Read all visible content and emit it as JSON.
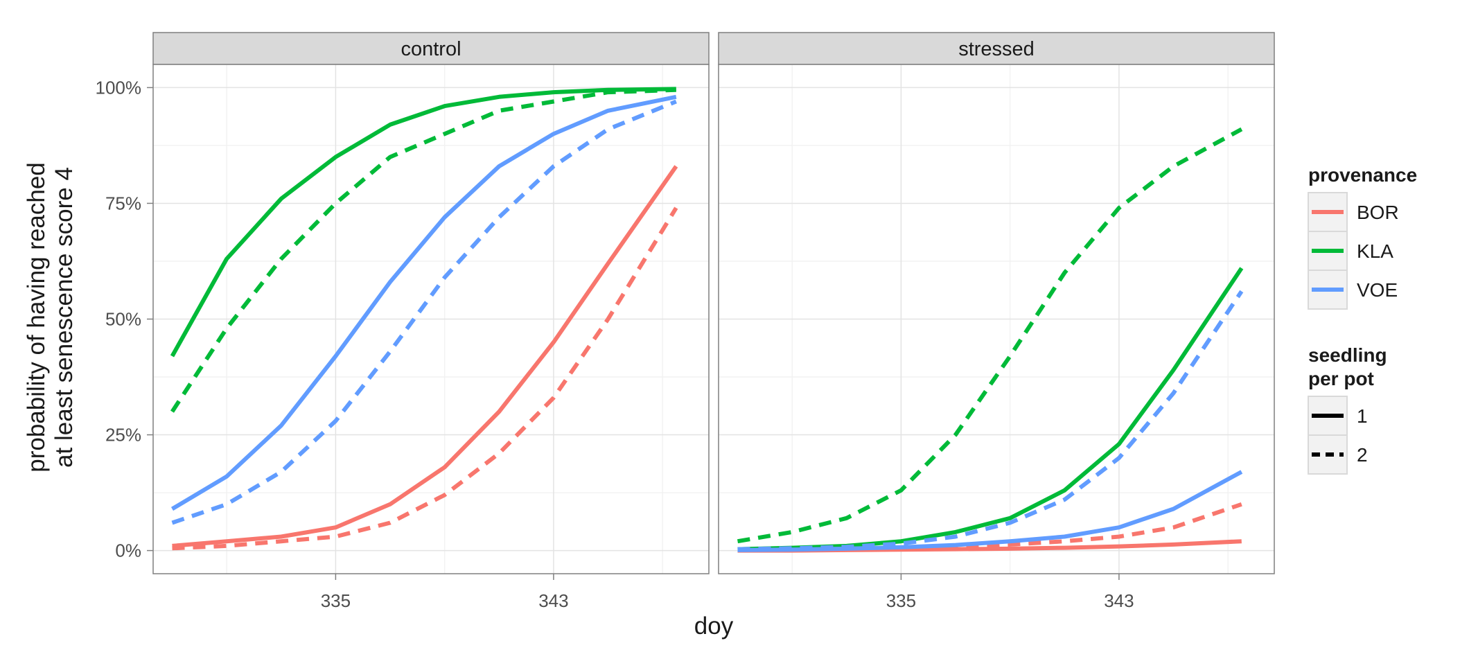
{
  "chart_data": {
    "type": "line",
    "x_label": "doy",
    "y_label_lines": [
      "probability of having reached",
      "at least senescence score 4"
    ],
    "x_ticks": [
      335,
      343
    ],
    "x_range": [
      328.3,
      348.7
    ],
    "y_ticks": [
      0,
      0.25,
      0.5,
      0.75,
      1.0
    ],
    "y_tick_labels": [
      "0%",
      "25%",
      "50%",
      "75%",
      "100%"
    ],
    "y_range": [
      -0.05,
      1.05
    ],
    "grid": true,
    "legend_position": "right",
    "colors": {
      "BOR": "#F8766D",
      "KLA": "#00BA38",
      "VOE": "#619CFF"
    },
    "legend": {
      "provenance": {
        "title": "provenance",
        "items": [
          "BOR",
          "KLA",
          "VOE"
        ]
      },
      "seedling": {
        "title_lines": [
          "seedling",
          "per pot"
        ],
        "items": [
          "1",
          "2"
        ]
      }
    },
    "x": [
      329,
      331,
      333,
      335,
      337,
      339,
      341,
      343,
      345,
      347.5
    ],
    "panels": [
      {
        "title": "control",
        "series": [
          {
            "provenance": "BOR",
            "seedling": "1",
            "values": [
              0.01,
              0.02,
              0.03,
              0.05,
              0.1,
              0.18,
              0.3,
              0.45,
              0.62,
              0.83
            ]
          },
          {
            "provenance": "BOR",
            "seedling": "2",
            "values": [
              0.005,
              0.01,
              0.02,
              0.03,
              0.06,
              0.12,
              0.21,
              0.33,
              0.5,
              0.74
            ]
          },
          {
            "provenance": "KLA",
            "seedling": "1",
            "values": [
              0.42,
              0.63,
              0.76,
              0.85,
              0.92,
              0.96,
              0.98,
              0.99,
              0.995,
              0.997
            ]
          },
          {
            "provenance": "KLA",
            "seedling": "2",
            "values": [
              0.3,
              0.48,
              0.63,
              0.75,
              0.85,
              0.9,
              0.95,
              0.97,
              0.99,
              0.995
            ]
          },
          {
            "provenance": "VOE",
            "seedling": "1",
            "values": [
              0.09,
              0.16,
              0.27,
              0.42,
              0.58,
              0.72,
              0.83,
              0.9,
              0.95,
              0.98
            ]
          },
          {
            "provenance": "VOE",
            "seedling": "2",
            "values": [
              0.06,
              0.1,
              0.17,
              0.28,
              0.43,
              0.59,
              0.72,
              0.83,
              0.91,
              0.97
            ]
          }
        ]
      },
      {
        "title": "stressed",
        "series": [
          {
            "provenance": "BOR",
            "seedling": "1",
            "values": [
              0.0,
              0.0,
              0.001,
              0.002,
              0.003,
              0.004,
              0.006,
              0.009,
              0.013,
              0.02
            ]
          },
          {
            "provenance": "BOR",
            "seedling": "2",
            "values": [
              0.001,
              0.002,
              0.003,
              0.005,
              0.008,
              0.013,
              0.02,
              0.03,
              0.05,
              0.1
            ]
          },
          {
            "provenance": "KLA",
            "seedling": "1",
            "values": [
              0.003,
              0.006,
              0.01,
              0.02,
              0.04,
              0.07,
              0.13,
              0.23,
              0.39,
              0.61
            ]
          },
          {
            "provenance": "KLA",
            "seedling": "2",
            "values": [
              0.02,
              0.04,
              0.07,
              0.13,
              0.25,
              0.42,
              0.6,
              0.74,
              0.83,
              0.91
            ]
          },
          {
            "provenance": "VOE",
            "seedling": "1",
            "values": [
              0.001,
              0.002,
              0.004,
              0.007,
              0.012,
              0.02,
              0.03,
              0.05,
              0.09,
              0.17
            ]
          },
          {
            "provenance": "VOE",
            "seedling": "2",
            "values": [
              0.003,
              0.005,
              0.008,
              0.015,
              0.03,
              0.06,
              0.11,
              0.2,
              0.34,
              0.56
            ]
          }
        ]
      }
    ]
  }
}
